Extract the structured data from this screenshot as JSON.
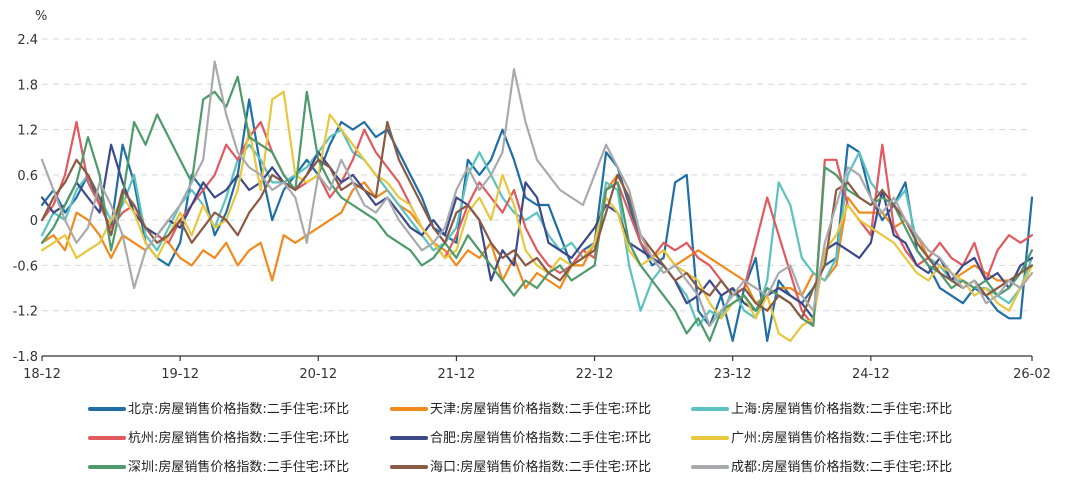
{
  "chart_data": {
    "type": "line",
    "unit_label": "%",
    "ylim": [
      -1.8,
      2.4
    ],
    "yticks": [
      "2.4",
      "1.8",
      "1.2",
      "0.6",
      "0",
      "-0.6",
      "-1.2",
      "-1.8"
    ],
    "xticks": [
      "18-12",
      "19-12",
      "20-12",
      "21-12",
      "22-12",
      "23-12",
      "24-12",
      "26-02"
    ],
    "xtick_months": [
      0,
      12,
      24,
      36,
      48,
      60,
      72,
      86
    ],
    "x_months_total": 86,
    "grid": true,
    "legend_position": "bottom",
    "series": [
      {
        "name": "北京:房屋销售价格指数:二手住宅:环比",
        "color": "#1f6fa5",
        "values": [
          0.2,
          0.4,
          0.1,
          0.3,
          0.6,
          0.2,
          -0.1,
          1.0,
          0.5,
          -0.3,
          -0.5,
          -0.6,
          -0.3,
          0.6,
          0.4,
          -0.2,
          0.1,
          0.6,
          1.6,
          0.7,
          0.0,
          0.4,
          0.6,
          0.8,
          0.6,
          1.0,
          1.3,
          1.2,
          1.3,
          1.1,
          1.2,
          0.9,
          0.6,
          0.3,
          -0.1,
          -0.2,
          -0.3,
          0.8,
          0.6,
          0.8,
          1.2,
          0.8,
          0.3,
          0.2,
          0.2,
          -0.2,
          -0.6,
          -0.4,
          -0.3,
          0.9,
          0.7,
          0.2,
          -0.3,
          -0.6,
          -0.5,
          0.5,
          0.6,
          -1.2,
          -1.4,
          -1.0,
          -1.6,
          -0.9,
          -0.5,
          -1.6,
          -0.8,
          -1.0,
          -1.1,
          -0.9,
          -0.6,
          -0.5,
          1.0,
          0.9,
          0.3,
          0.0,
          0.2,
          0.5,
          -0.4,
          -0.6,
          -0.9,
          -1.0,
          -1.1,
          -0.9,
          -1.0,
          -1.2,
          -1.3,
          -1.3,
          0.3
        ]
      },
      {
        "name": "天津:房屋销售价格指数:二手住宅:环比",
        "color": "#f08a1c",
        "values": [
          -0.3,
          -0.2,
          -0.4,
          0.1,
          0.0,
          -0.2,
          -0.5,
          -0.2,
          -0.3,
          -0.4,
          -0.2,
          -0.3,
          -0.5,
          -0.6,
          -0.4,
          -0.5,
          -0.3,
          -0.6,
          -0.4,
          -0.3,
          -0.8,
          -0.2,
          -0.3,
          -0.2,
          -0.1,
          0.0,
          0.1,
          0.4,
          0.5,
          0.3,
          0.4,
          0.2,
          0.1,
          -0.1,
          -0.3,
          -0.4,
          -0.6,
          -0.4,
          -0.5,
          -0.3,
          -0.8,
          -0.5,
          -0.9,
          -0.7,
          -0.8,
          -0.9,
          -0.6,
          -0.6,
          -0.3,
          0.4,
          0.6,
          0.3,
          -0.2,
          -0.5,
          -0.4,
          -0.6,
          -0.5,
          -0.4,
          -0.5,
          -0.6,
          -0.7,
          -0.8,
          -1.1,
          -1.0,
          -0.9,
          -0.9,
          -1.0,
          -0.7,
          -0.8,
          -0.6,
          0.3,
          0.1,
          0.1,
          0.1,
          -0.1,
          0.0,
          -0.2,
          -0.5,
          -0.6,
          -0.8,
          -0.7,
          -0.6,
          -0.7,
          -0.8,
          -0.8,
          -0.9,
          -0.6
        ]
      },
      {
        "name": "上海:房屋销售价格指数:二手住宅:环比",
        "color": "#5bc2c0",
        "values": [
          -0.2,
          0.1,
          0.0,
          0.4,
          0.6,
          0.3,
          0.0,
          0.2,
          0.6,
          -0.2,
          -0.4,
          -0.1,
          0.2,
          0.4,
          0.2,
          -0.1,
          0.3,
          0.8,
          1.0,
          0.8,
          0.5,
          0.5,
          0.6,
          0.7,
          0.9,
          1.1,
          1.2,
          0.9,
          0.8,
          0.6,
          0.4,
          0.2,
          0.0,
          -0.2,
          -0.4,
          -0.3,
          -0.1,
          0.6,
          0.9,
          0.6,
          0.3,
          0.1,
          0.0,
          0.1,
          -0.2,
          -0.4,
          -0.3,
          -0.5,
          -0.4,
          0.5,
          0.4,
          -0.6,
          -1.2,
          -0.8,
          -0.6,
          -0.8,
          -1.0,
          -1.4,
          -1.2,
          -1.3,
          -0.9,
          -1.2,
          -1.3,
          -0.8,
          0.5,
          0.2,
          -0.5,
          -0.7,
          -0.8,
          -0.5,
          0.6,
          0.9,
          0.5,
          0.3,
          0.2,
          0.4,
          -0.3,
          -0.5,
          -0.6,
          -0.8,
          -0.8,
          -0.9,
          -0.9,
          -1.0,
          -1.1,
          -0.9,
          -0.5
        ]
      },
      {
        "name": "杭州:房屋销售价格指数:二手住宅:环比",
        "color": "#e05a5f",
        "values": [
          0.0,
          0.2,
          0.6,
          1.3,
          0.5,
          0.2,
          -0.1,
          0.1,
          0.2,
          -0.1,
          -0.2,
          -0.3,
          0.0,
          0.2,
          0.4,
          0.6,
          1.0,
          0.8,
          1.1,
          1.3,
          0.9,
          0.6,
          0.4,
          0.5,
          0.6,
          0.3,
          0.5,
          0.8,
          1.2,
          0.9,
          0.7,
          0.5,
          0.2,
          -0.1,
          -0.3,
          -0.5,
          -0.2,
          0.2,
          0.5,
          0.3,
          0.1,
          0.4,
          -0.1,
          -0.4,
          -0.6,
          -0.7,
          -0.6,
          -0.4,
          -0.5,
          0.4,
          0.5,
          0.1,
          -0.3,
          -0.5,
          -0.3,
          -0.4,
          -0.3,
          -0.5,
          -0.6,
          -0.8,
          -1.0,
          -0.9,
          -0.3,
          0.3,
          -0.2,
          -0.7,
          -1.2,
          -1.4,
          0.8,
          0.8,
          0.2,
          0.0,
          -0.2,
          1.0,
          -0.1,
          -0.4,
          -0.6,
          -0.5,
          -0.3,
          -0.5,
          -0.6,
          -0.3,
          -0.8,
          -0.4,
          -0.2,
          -0.3,
          -0.2
        ]
      },
      {
        "name": "合肥:房屋销售价格指数:二手住宅:环比",
        "color": "#3d4a8a",
        "values": [
          0.3,
          0.1,
          0.2,
          0.5,
          0.3,
          0.1,
          1.0,
          0.5,
          0.1,
          -0.1,
          -0.2,
          0.0,
          -0.1,
          0.2,
          0.5,
          0.3,
          0.4,
          0.6,
          0.4,
          0.5,
          0.7,
          0.5,
          0.4,
          0.6,
          0.9,
          0.7,
          0.5,
          0.6,
          0.4,
          0.2,
          0.3,
          0.1,
          -0.1,
          -0.2,
          0.0,
          -0.2,
          0.3,
          0.2,
          0.0,
          -0.8,
          -0.4,
          -0.6,
          0.5,
          0.3,
          -0.3,
          -0.4,
          -0.5,
          -0.3,
          -0.1,
          0.2,
          0.1,
          -0.3,
          -0.4,
          -0.5,
          -0.6,
          -0.8,
          -1.1,
          -1.0,
          -0.8,
          -1.0,
          -0.9,
          -1.1,
          -1.2,
          -1.0,
          -0.9,
          -1.0,
          -1.1,
          -1.3,
          -0.4,
          -0.3,
          -0.4,
          -0.5,
          -0.3,
          0.4,
          -0.2,
          -0.3,
          -0.6,
          -0.7,
          -0.5,
          -0.8,
          -0.6,
          -0.5,
          -0.8,
          -0.7,
          -0.9,
          -0.6,
          -0.5
        ]
      },
      {
        "name": "广州:房屋销售价格指数:二手住宅:环比",
        "color": "#e8c63e",
        "values": [
          -0.4,
          -0.3,
          -0.2,
          -0.5,
          -0.4,
          -0.3,
          0.0,
          0.3,
          0.1,
          -0.3,
          -0.5,
          -0.2,
          0.1,
          -0.2,
          0.2,
          -0.1,
          0.0,
          0.4,
          1.2,
          0.4,
          1.6,
          1.7,
          0.6,
          0.5,
          0.6,
          1.4,
          1.2,
          1.0,
          0.8,
          0.6,
          0.5,
          0.3,
          0.2,
          -0.1,
          -0.3,
          -0.5,
          -0.4,
          0.1,
          0.3,
          0.0,
          0.6,
          0.2,
          -0.4,
          -0.6,
          -0.7,
          -0.5,
          -0.6,
          -0.5,
          -0.3,
          0.3,
          0.1,
          -0.4,
          -0.6,
          -0.5,
          -0.4,
          -0.6,
          -0.7,
          -0.8,
          -1.1,
          -1.3,
          -1.1,
          -1.0,
          -1.3,
          -1.0,
          -1.5,
          -1.6,
          -1.4,
          -1.3,
          -0.4,
          -0.2,
          0.2,
          0.0,
          -0.1,
          -0.2,
          -0.3,
          -0.5,
          -0.7,
          -0.8,
          -0.6,
          -0.7,
          -0.8,
          -1.0,
          -0.9,
          -1.1,
          -1.2,
          -0.9,
          -0.6
        ]
      },
      {
        "name": "深圳:房屋销售价格指数:二手住宅:环比",
        "color": "#4e9a6b",
        "values": [
          -0.3,
          -0.1,
          0.2,
          0.5,
          1.1,
          0.6,
          -0.4,
          0.3,
          1.3,
          1.0,
          1.4,
          1.1,
          0.8,
          0.5,
          1.6,
          1.7,
          1.5,
          1.9,
          1.1,
          1.0,
          0.9,
          0.6,
          0.4,
          1.7,
          0.8,
          0.5,
          0.3,
          0.2,
          0.1,
          0.0,
          -0.2,
          -0.3,
          -0.4,
          -0.6,
          -0.5,
          -0.3,
          -0.5,
          -0.2,
          -0.4,
          -0.6,
          -0.8,
          -1.0,
          -0.8,
          -0.9,
          -0.7,
          -0.6,
          -0.8,
          -0.7,
          -0.6,
          0.4,
          0.5,
          -0.3,
          -0.6,
          -0.8,
          -1.0,
          -1.2,
          -1.5,
          -1.3,
          -1.6,
          -1.2,
          -1.1,
          -1.0,
          -1.2,
          -0.9,
          -1.0,
          -1.1,
          -1.3,
          -1.4,
          0.7,
          0.6,
          0.4,
          0.3,
          0.2,
          0.3,
          0.2,
          -0.1,
          -0.4,
          -0.6,
          -0.7,
          -0.9,
          -0.8,
          -0.9,
          -0.8,
          -1.0,
          -0.9,
          -0.7,
          -0.4
        ]
      },
      {
        "name": "海口:房屋销售价格指数:二手住宅:环比",
        "color": "#8a5a44",
        "values": [
          0.0,
          0.3,
          0.5,
          0.8,
          0.6,
          0.3,
          -0.2,
          0.4,
          0.2,
          -0.1,
          -0.3,
          -0.2,
          0.0,
          -0.3,
          -0.1,
          0.1,
          0.0,
          -0.2,
          0.1,
          0.3,
          0.6,
          0.5,
          0.4,
          0.6,
          0.8,
          0.7,
          0.4,
          0.5,
          0.4,
          0.3,
          1.3,
          0.8,
          0.5,
          0.2,
          -0.1,
          -0.3,
          0.1,
          0.2,
          0.0,
          -0.3,
          -0.5,
          -0.4,
          -0.6,
          -0.5,
          -0.7,
          -0.8,
          -0.6,
          -0.5,
          -0.4,
          0.1,
          0.6,
          0.3,
          -0.2,
          -0.4,
          -0.6,
          -0.8,
          -0.7,
          -0.9,
          -1.0,
          -0.8,
          -1.0,
          -0.9,
          -1.1,
          -1.2,
          -1.0,
          -1.1,
          -1.3,
          -0.9,
          -0.6,
          0.4,
          0.5,
          0.3,
          0.2,
          0.4,
          0.2,
          0.0,
          -0.3,
          -0.5,
          -0.7,
          -0.8,
          -0.9,
          -0.8,
          -1.0,
          -0.9,
          -0.8,
          -0.7,
          -0.6
        ]
      },
      {
        "name": "成都:房屋销售价格指数:二手住宅:环比",
        "color": "#a9aaad",
        "values": [
          0.8,
          0.4,
          0.0,
          -0.3,
          -0.1,
          0.5,
          0.2,
          -0.2,
          -0.9,
          -0.4,
          -0.2,
          0.0,
          0.2,
          0.5,
          0.8,
          2.1,
          1.4,
          0.9,
          0.7,
          0.6,
          0.4,
          0.5,
          0.3,
          -0.3,
          0.6,
          0.4,
          0.8,
          0.5,
          0.2,
          0.1,
          0.3,
          0.0,
          -0.2,
          -0.4,
          -0.3,
          -0.1,
          0.4,
          0.7,
          0.4,
          0.6,
          0.9,
          2.0,
          1.3,
          0.8,
          0.6,
          0.4,
          0.3,
          0.2,
          0.6,
          1.0,
          0.7,
          0.4,
          -0.2,
          -0.5,
          -0.7,
          -0.6,
          -0.8,
          -1.0,
          -1.4,
          -1.2,
          -1.0,
          -0.8,
          -0.9,
          -1.0,
          -0.7,
          -0.6,
          -1.0,
          -1.2,
          -0.3,
          0.2,
          0.7,
          0.6,
          0.3,
          0.1,
          0.3,
          0.0,
          -0.2,
          -0.4,
          -0.5,
          -0.7,
          -0.9,
          -0.8,
          -1.1,
          -1.0,
          -0.8,
          -0.9,
          -0.7
        ]
      }
    ]
  }
}
